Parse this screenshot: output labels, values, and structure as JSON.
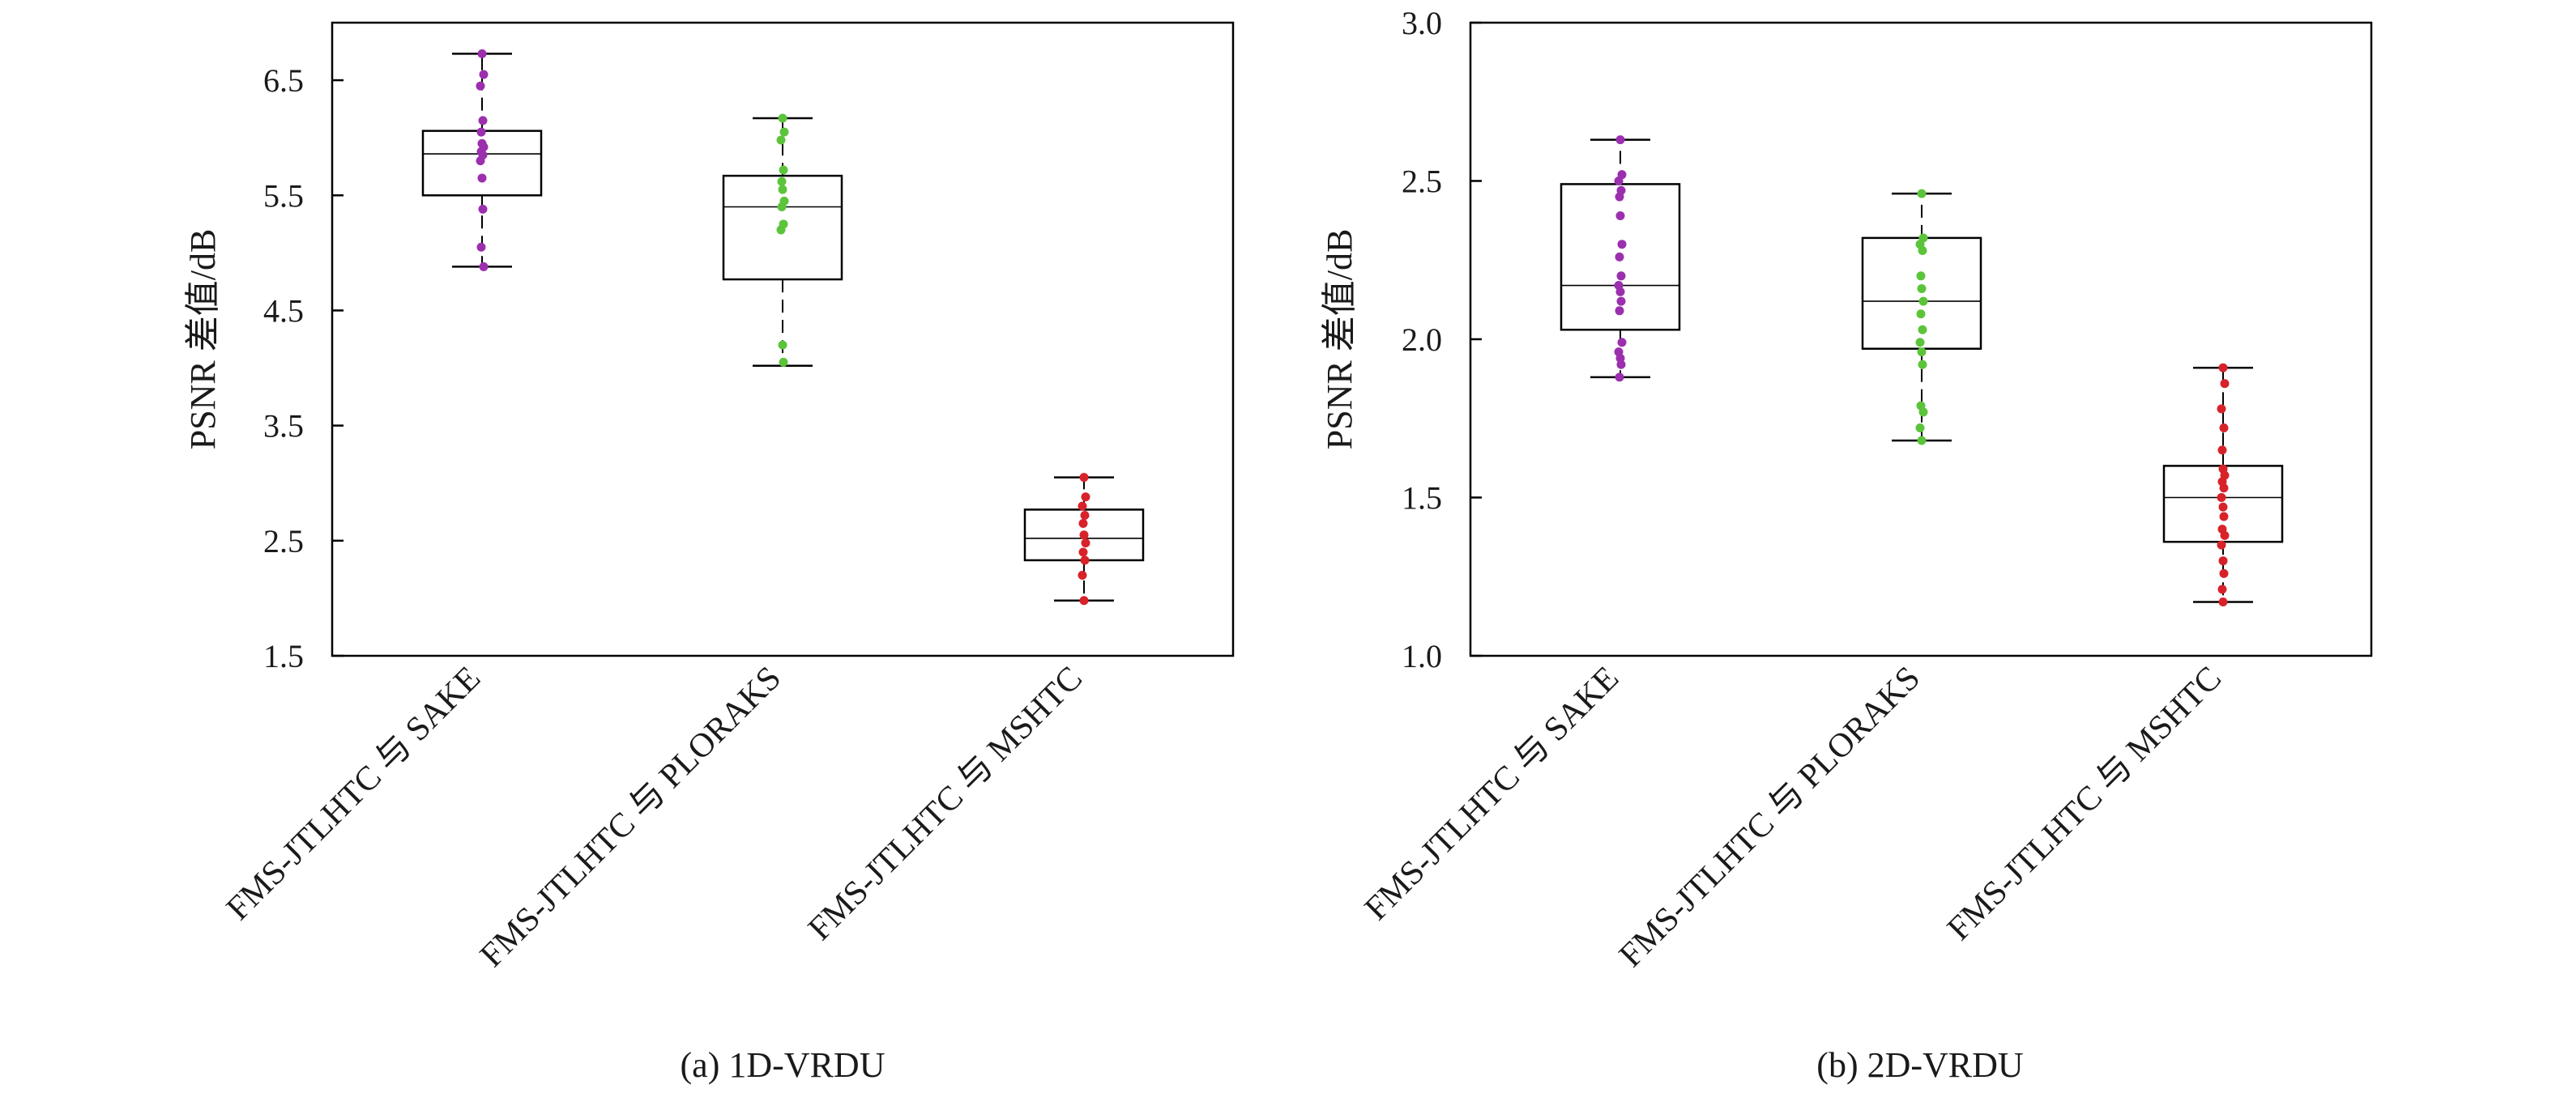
{
  "chart_data": [
    {
      "type": "box",
      "caption": "(a) 1D-VRDU",
      "ylabel": "PSNR 差值/dB",
      "ylim": [
        1.5,
        7.0
      ],
      "yticks": [
        1.5,
        2.5,
        3.5,
        4.5,
        5.5,
        6.5
      ],
      "ytick_labels": [
        "1.5",
        "2.5",
        "3.5",
        "4.5",
        "5.5",
        "6.5"
      ],
      "categories": [
        "FMS-JTLHTC 与 SAKE",
        "FMS-JTLHTC 与 PLORAKS",
        "FMS-JTLHTC 与 MSHTC"
      ],
      "series": [
        {
          "name": "FMS-JTLHTC 与 SAKE",
          "color": "#9b2fae",
          "box": {
            "min": 4.88,
            "q1": 5.5,
            "median": 5.86,
            "q3": 6.06,
            "max": 6.73
          },
          "points": [
            6.73,
            6.55,
            6.45,
            6.15,
            6.05,
            5.95,
            5.92,
            5.88,
            5.85,
            5.8,
            5.65,
            5.38,
            5.05,
            4.88
          ]
        },
        {
          "name": "FMS-JTLHTC 与 PLORAKS",
          "color": "#5cc43a",
          "box": {
            "min": 4.02,
            "q1": 4.77,
            "median": 5.4,
            "q3": 5.67,
            "max": 6.17
          },
          "points": [
            6.17,
            6.05,
            5.98,
            5.72,
            5.62,
            5.55,
            5.45,
            5.4,
            5.25,
            5.2,
            4.2,
            4.05
          ]
        },
        {
          "name": "FMS-JTLHTC 与 MSHTC",
          "color": "#d8222a",
          "box": {
            "min": 1.98,
            "q1": 2.33,
            "median": 2.52,
            "q3": 2.77,
            "max": 3.05
          },
          "points": [
            3.05,
            2.88,
            2.8,
            2.72,
            2.65,
            2.55,
            2.48,
            2.4,
            2.33,
            2.2,
            1.98
          ]
        }
      ]
    },
    {
      "type": "box",
      "caption": "(b) 2D-VRDU",
      "ylabel": "PSNR 差值/dB",
      "ylim": [
        1.0,
        3.0
      ],
      "yticks": [
        1.0,
        1.5,
        2.0,
        2.5,
        3.0
      ],
      "ytick_labels": [
        "1.0",
        "1.5",
        "2.0",
        "2.5",
        "3.0"
      ],
      "categories": [
        "FMS-JTLHTC 与 SAKE",
        "FMS-JTLHTC 与 PLORAKS",
        "FMS-JTLHTC 与 MSHTC"
      ],
      "series": [
        {
          "name": "FMS-JTLHTC 与 SAKE",
          "color": "#9b2fae",
          "box": {
            "min": 1.88,
            "q1": 2.03,
            "median": 2.17,
            "q3": 2.49,
            "max": 2.63
          },
          "points": [
            2.63,
            2.52,
            2.5,
            2.47,
            2.45,
            2.39,
            2.3,
            2.26,
            2.2,
            2.17,
            2.15,
            2.12,
            2.09,
            1.99,
            1.96,
            1.94,
            1.92,
            1.88
          ]
        },
        {
          "name": "FMS-JTLHTC 与 PLORAKS",
          "color": "#5cc43a",
          "box": {
            "min": 1.68,
            "q1": 1.97,
            "median": 2.12,
            "q3": 2.32,
            "max": 2.46
          },
          "points": [
            2.46,
            2.32,
            2.3,
            2.28,
            2.2,
            2.16,
            2.12,
            2.08,
            2.03,
            1.99,
            1.96,
            1.92,
            1.79,
            1.77,
            1.72,
            1.68
          ]
        },
        {
          "name": "FMS-JTLHTC 与 MSHTC",
          "color": "#d8222a",
          "box": {
            "min": 1.17,
            "q1": 1.36,
            "median": 1.5,
            "q3": 1.6,
            "max": 1.91
          },
          "points": [
            1.91,
            1.86,
            1.78,
            1.72,
            1.65,
            1.59,
            1.57,
            1.55,
            1.53,
            1.5,
            1.47,
            1.44,
            1.4,
            1.38,
            1.35,
            1.3,
            1.26,
            1.21,
            1.17
          ]
        }
      ]
    }
  ]
}
